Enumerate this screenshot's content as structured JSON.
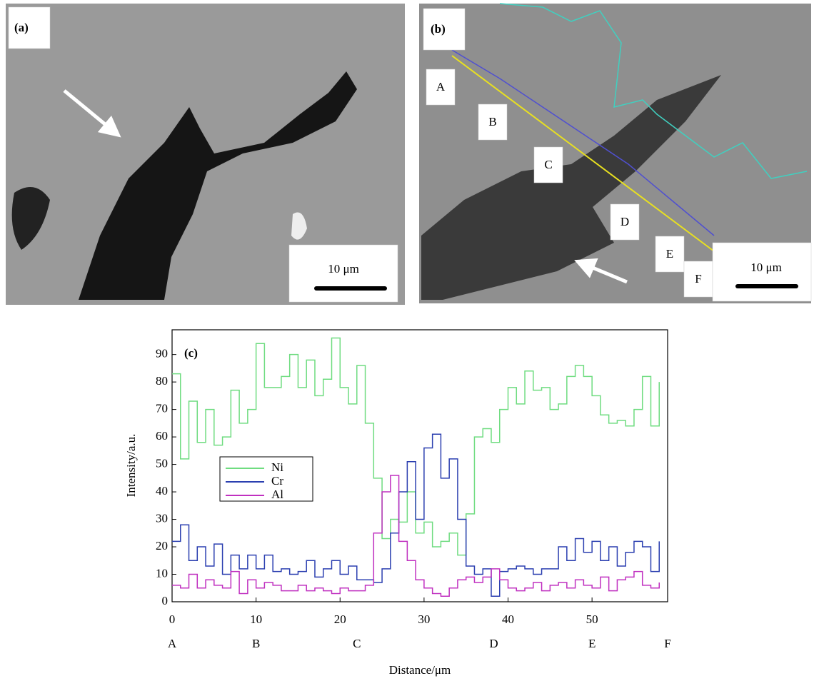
{
  "micrographs": [
    {
      "label": "(a)",
      "scale_bar": "10 μm"
    },
    {
      "label": "(b)",
      "scale_bar": "10 μm",
      "points": [
        "A",
        "B",
        "C",
        "D",
        "E",
        "F"
      ]
    }
  ],
  "chart_data": {
    "type": "line",
    "label": "(c)",
    "x_label": "Distance/μm",
    "y_label": "Intensity/a.u.",
    "step": true,
    "xlim": [
      0,
      59
    ],
    "ylim": [
      0,
      99
    ],
    "xticks": [
      0,
      10,
      20,
      30,
      40,
      50
    ],
    "yticks": [
      0,
      10,
      20,
      30,
      40,
      50,
      60,
      70,
      80,
      90
    ],
    "positions": {
      "labels": [
        "A",
        "B",
        "C",
        "D",
        "E",
        "F"
      ],
      "x": [
        0,
        10,
        22,
        38.3,
        50,
        59
      ]
    },
    "x": [
      0,
      1,
      2,
      3,
      4,
      5,
      6,
      7,
      8,
      9,
      10,
      11,
      12,
      13,
      14,
      15,
      16,
      17,
      18,
      19,
      20,
      21,
      22,
      23,
      24,
      25,
      26,
      27,
      28,
      29,
      30,
      31,
      32,
      33,
      34,
      35,
      36,
      37,
      38,
      39,
      40,
      41,
      42,
      43,
      44,
      45,
      46,
      47,
      48,
      49,
      50,
      51,
      52,
      53,
      54,
      55,
      56,
      57,
      58
    ],
    "series": [
      {
        "name": "Ni",
        "color": "#6fdc80",
        "values": [
          83,
          52,
          73,
          58,
          70,
          57,
          60,
          77,
          65,
          70,
          94,
          78,
          78,
          82,
          90,
          78,
          88,
          75,
          81,
          96,
          78,
          72,
          86,
          65,
          45,
          23,
          30,
          29,
          40,
          25,
          29,
          20,
          22,
          25,
          17,
          32,
          60,
          63,
          58,
          70,
          78,
          72,
          84,
          77,
          78,
          70,
          72,
          82,
          86,
          82,
          75,
          68,
          65,
          66,
          64,
          70,
          82,
          64,
          80
        ]
      },
      {
        "name": "Cr",
        "color": "#2b3fb0",
        "values": [
          22,
          28,
          15,
          20,
          13,
          21,
          10,
          17,
          12,
          17,
          12,
          17,
          11,
          12,
          10,
          11,
          15,
          9,
          12,
          15,
          10,
          13,
          8,
          8,
          7,
          12,
          25,
          40,
          51,
          30,
          56,
          61,
          45,
          52,
          30,
          13,
          10,
          12,
          2,
          11,
          12,
          13,
          12,
          10,
          12,
          12,
          20,
          15,
          23,
          18,
          22,
          15,
          20,
          13,
          18,
          22,
          20,
          11,
          22
        ]
      },
      {
        "name": "Al",
        "color": "#c030c0",
        "values": [
          6,
          5,
          10,
          5,
          8,
          6,
          5,
          11,
          3,
          8,
          5,
          7,
          6,
          4,
          4,
          6,
          4,
          5,
          4,
          3,
          5,
          4,
          4,
          6,
          25,
          40,
          46,
          22,
          15,
          8,
          5,
          3,
          2,
          5,
          8,
          9,
          7,
          9,
          12,
          8,
          5,
          4,
          5,
          7,
          4,
          6,
          7,
          5,
          8,
          6,
          5,
          9,
          4,
          8,
          9,
          11,
          6,
          5,
          7
        ]
      }
    ]
  }
}
